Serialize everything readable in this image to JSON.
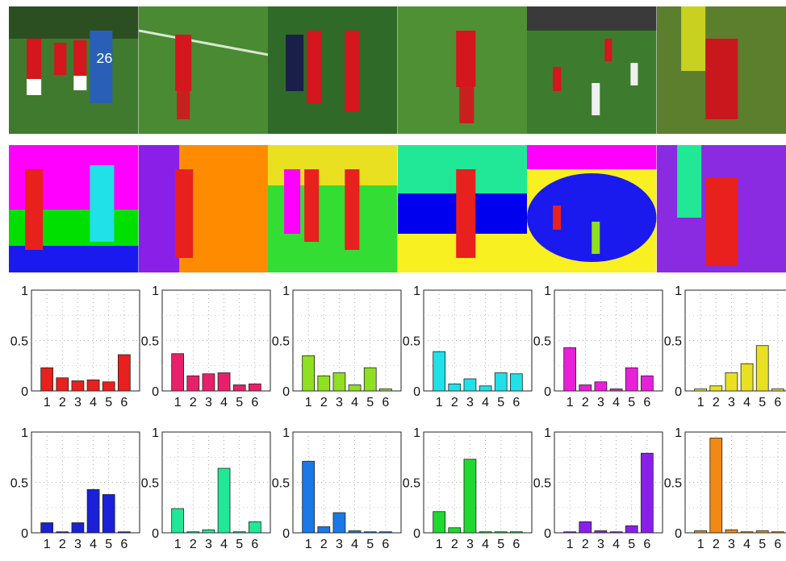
{
  "photos": [
    {
      "name": "frame-1",
      "bg": "#3f7a2e"
    },
    {
      "name": "frame-2",
      "bg": "#4a8a32"
    },
    {
      "name": "frame-3",
      "bg": "#2f6a28"
    },
    {
      "name": "frame-4",
      "bg": "#4f9034"
    },
    {
      "name": "frame-5",
      "bg": "#3d7c2f"
    },
    {
      "name": "frame-6",
      "bg": "#5b7f2c"
    }
  ],
  "photo_texts": {
    "jersey_number": "26"
  },
  "segmentations": [
    {
      "name": "segmentation-1",
      "bg": "#ff00ff"
    },
    {
      "name": "segmentation-2",
      "bg": "#ff8c00"
    },
    {
      "name": "segmentation-3",
      "bg": "#33dd33"
    },
    {
      "name": "segmentation-4",
      "bg": "#0000ee"
    },
    {
      "name": "segmentation-5",
      "bg": "#1a1aee"
    },
    {
      "name": "segmentation-6",
      "bg": "#8a2be2"
    }
  ],
  "chart_data": [
    {
      "type": "bar",
      "categories": [
        "1",
        "2",
        "3",
        "4",
        "5",
        "6"
      ],
      "values": [
        0.23,
        0.13,
        0.1,
        0.11,
        0.09,
        0.36
      ],
      "color": "#e8201e",
      "ylim": [
        0,
        1
      ],
      "yticks": [
        0,
        0.5,
        1
      ],
      "ytick_labels": [
        "0",
        "0.5",
        "1"
      ],
      "grid": true
    },
    {
      "type": "bar",
      "categories": [
        "1",
        "2",
        "3",
        "4",
        "5",
        "6"
      ],
      "values": [
        0.37,
        0.15,
        0.17,
        0.18,
        0.06,
        0.07
      ],
      "color": "#e8206b",
      "ylim": [
        0,
        1
      ],
      "yticks": [
        0,
        0.5,
        1
      ],
      "ytick_labels": [
        "0",
        "0.5",
        "1"
      ],
      "grid": true
    },
    {
      "type": "bar",
      "categories": [
        "1",
        "2",
        "3",
        "4",
        "5",
        "6"
      ],
      "values": [
        0.35,
        0.15,
        0.18,
        0.06,
        0.23,
        0.02
      ],
      "color": "#8ee020",
      "ylim": [
        0,
        1
      ],
      "yticks": [
        0,
        0.5,
        1
      ],
      "ytick_labels": [
        "0",
        "0.5",
        "1"
      ],
      "grid": true
    },
    {
      "type": "bar",
      "categories": [
        "1",
        "2",
        "3",
        "4",
        "5",
        "6"
      ],
      "values": [
        0.39,
        0.07,
        0.12,
        0.05,
        0.18,
        0.17
      ],
      "color": "#20e0e8",
      "ylim": [
        0,
        1
      ],
      "yticks": [
        0,
        0.5,
        1
      ],
      "ytick_labels": [
        "0",
        "0.5",
        "1"
      ],
      "grid": true
    },
    {
      "type": "bar",
      "categories": [
        "1",
        "2",
        "3",
        "4",
        "5",
        "6"
      ],
      "values": [
        0.43,
        0.06,
        0.09,
        0.02,
        0.23,
        0.15
      ],
      "color": "#e820d8",
      "ylim": [
        0,
        1
      ],
      "yticks": [
        0,
        0.5,
        1
      ],
      "ytick_labels": [
        "0",
        "0.5",
        "1"
      ],
      "grid": true
    },
    {
      "type": "bar",
      "categories": [
        "1",
        "2",
        "3",
        "4",
        "5",
        "6"
      ],
      "values": [
        0.02,
        0.05,
        0.18,
        0.27,
        0.45,
        0.02
      ],
      "color": "#e8e020",
      "ylim": [
        0,
        1
      ],
      "yticks": [
        0,
        0.5,
        1
      ],
      "ytick_labels": [
        "0",
        "0.5",
        "1"
      ],
      "grid": true
    },
    {
      "type": "bar",
      "categories": [
        "1",
        "2",
        "3",
        "4",
        "5",
        "6"
      ],
      "values": [
        0.1,
        0.01,
        0.1,
        0.43,
        0.38,
        0.01
      ],
      "color": "#1a20d8",
      "ylim": [
        0,
        1
      ],
      "yticks": [
        0,
        0.5,
        1
      ],
      "ytick_labels": [
        "0",
        "0.5",
        "1"
      ],
      "grid": true
    },
    {
      "type": "bar",
      "categories": [
        "1",
        "2",
        "3",
        "4",
        "5",
        "6"
      ],
      "values": [
        0.24,
        0.01,
        0.03,
        0.64,
        0.01,
        0.11
      ],
      "color": "#20e896",
      "ylim": [
        0,
        1
      ],
      "yticks": [
        0,
        0.5,
        1
      ],
      "ytick_labels": [
        "0",
        "0.5",
        "1"
      ],
      "grid": true
    },
    {
      "type": "bar",
      "categories": [
        "1",
        "2",
        "3",
        "4",
        "5",
        "6"
      ],
      "values": [
        0.71,
        0.06,
        0.2,
        0.02,
        0.01,
        0.01
      ],
      "color": "#1a78e8",
      "ylim": [
        0,
        1
      ],
      "yticks": [
        0,
        0.5,
        1
      ],
      "ytick_labels": [
        "0",
        "0.5",
        "1"
      ],
      "grid": true
    },
    {
      "type": "bar",
      "categories": [
        "1",
        "2",
        "3",
        "4",
        "5",
        "6"
      ],
      "values": [
        0.21,
        0.05,
        0.73,
        0.01,
        0.01,
        0.01
      ],
      "color": "#20d830",
      "ylim": [
        0,
        1
      ],
      "yticks": [
        0,
        0.5,
        1
      ],
      "ytick_labels": [
        "0",
        "0.5",
        "1"
      ],
      "grid": true
    },
    {
      "type": "bar",
      "categories": [
        "1",
        "2",
        "3",
        "4",
        "5",
        "6"
      ],
      "values": [
        0.01,
        0.11,
        0.02,
        0.01,
        0.07,
        0.79
      ],
      "color": "#8a20e8",
      "ylim": [
        0,
        1
      ],
      "yticks": [
        0,
        0.5,
        1
      ],
      "ytick_labels": [
        "0",
        "0.5",
        "1"
      ],
      "grid": true
    },
    {
      "type": "bar",
      "categories": [
        "1",
        "2",
        "3",
        "4",
        "5",
        "6"
      ],
      "values": [
        0.02,
        0.94,
        0.03,
        0.01,
        0.02,
        0.01
      ],
      "color": "#f08a14",
      "ylim": [
        0,
        1
      ],
      "yticks": [
        0,
        0.5,
        1
      ],
      "ytick_labels": [
        "0",
        "0.5",
        "1"
      ],
      "grid": true
    }
  ]
}
